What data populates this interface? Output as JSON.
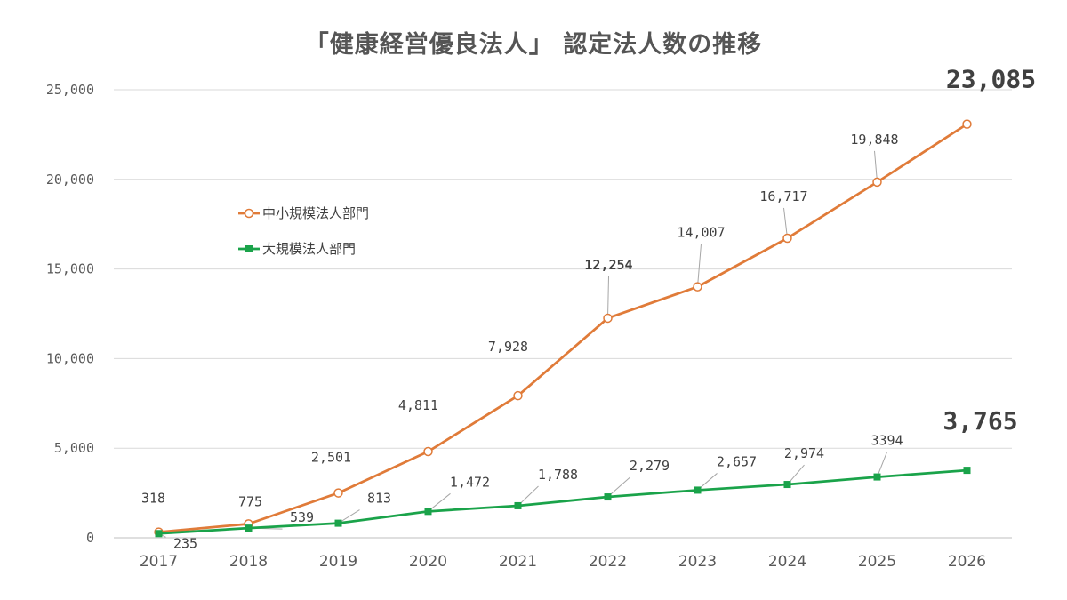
{
  "chart_data": {
    "type": "line",
    "title": "「健康経営優良法人」 認定法人数の推移",
    "xlabel": "",
    "ylabel": "",
    "ylim": [
      0,
      25000
    ],
    "yticks": [
      0,
      5000,
      10000,
      15000,
      20000,
      25000
    ],
    "ytick_labels": [
      "0",
      "5,000",
      "10,000",
      "15,000",
      "20,000",
      "25,000"
    ],
    "categories": [
      "2017",
      "2018",
      "2019",
      "2020",
      "2021",
      "2022",
      "2023",
      "2024",
      "2025",
      "2026"
    ],
    "grid": true,
    "legend_position": "upper-left",
    "series": [
      {
        "name": "中小規模法人部門",
        "color": "#E07B39",
        "marker": "open-circle",
        "values": [
          318,
          775,
          2501,
          4811,
          7928,
          12254,
          14007,
          16717,
          19848,
          23085
        ],
        "labels": [
          "318",
          "775",
          "2,501",
          "4,811",
          "7,928",
          "12,254",
          "14,007",
          "16,717",
          "19,848",
          "23,085"
        ]
      },
      {
        "name": "大規模法人部門",
        "color": "#1AA34A",
        "marker": "square",
        "values": [
          235,
          539,
          813,
          1472,
          1788,
          2279,
          2657,
          2974,
          3394,
          3765
        ],
        "labels": [
          "235",
          "539",
          "813",
          "1,472",
          "1,788",
          "2,279",
          "2,657",
          "2,974",
          "3394",
          "3,765"
        ]
      }
    ]
  }
}
